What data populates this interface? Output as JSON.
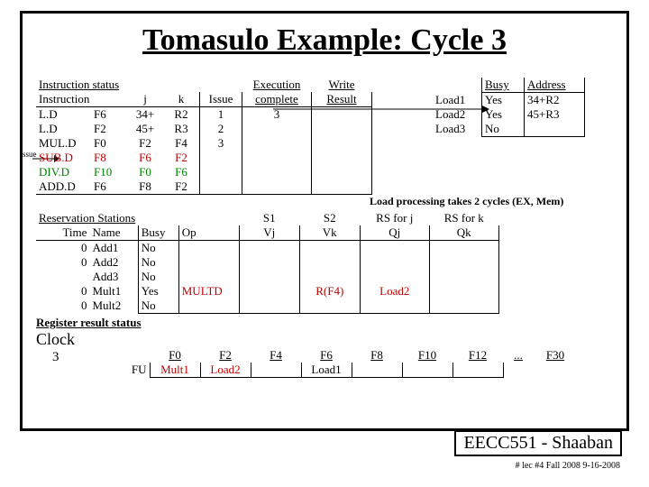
{
  "title": "Tomasulo Example:  Cycle 3",
  "issue_label": "Issue",
  "instruction_status": {
    "heading": "Instruction status",
    "cols": [
      "Instruction",
      "j",
      "k",
      "Issue",
      "Execution complete",
      "Write Result"
    ],
    "rows": [
      {
        "op": "L.D",
        "d": "F6",
        "j": "34+",
        "k": "R2",
        "issue": "1",
        "exec": "3",
        "write": ""
      },
      {
        "op": "L.D",
        "d": "F2",
        "j": "45+",
        "k": "R3",
        "issue": "2",
        "exec": "",
        "write": ""
      },
      {
        "op": "MUL.D",
        "d": "F0",
        "j": "F2",
        "k": "F4",
        "issue": "3",
        "exec": "",
        "write": ""
      },
      {
        "op": "SUB.D",
        "d": "F8",
        "j": "F6",
        "k": "F2",
        "issue": "",
        "exec": "",
        "write": "",
        "color": "red"
      },
      {
        "op": "DIV.D",
        "d": "F10",
        "j": "F0",
        "k": "F6",
        "issue": "",
        "exec": "",
        "write": "",
        "color": "green"
      },
      {
        "op": "ADD.D",
        "d": "F6",
        "j": "F8",
        "k": "F2",
        "issue": "",
        "exec": "",
        "write": ""
      }
    ]
  },
  "load_table": {
    "cols": [
      "",
      "Busy",
      "Address"
    ],
    "rows": [
      {
        "name": "Load1",
        "busy": "Yes",
        "addr": "34+R2"
      },
      {
        "name": "Load2",
        "busy": "Yes",
        "addr": "45+R3"
      },
      {
        "name": "Load3",
        "busy": "No",
        "addr": ""
      }
    ]
  },
  "reservation": {
    "heading": "Reservation Stations",
    "cols": [
      "Time",
      "Name",
      "Busy",
      "Op",
      "S1 Vj",
      "S2 Vk",
      "RS for j Qj",
      "RS for k Qk"
    ],
    "rows": [
      {
        "time": "0",
        "name": "Add1",
        "busy": "No",
        "op": "",
        "vj": "",
        "vk": "",
        "qj": "",
        "qk": ""
      },
      {
        "time": "0",
        "name": "Add2",
        "busy": "No",
        "op": "",
        "vj": "",
        "vk": "",
        "qj": "",
        "qk": ""
      },
      {
        "time": "",
        "name": "Add3",
        "busy": "No",
        "op": "",
        "vj": "",
        "vk": "",
        "qj": "",
        "qk": ""
      },
      {
        "time": "0",
        "name": "Mult1",
        "busy": "Yes",
        "op": "MULTD",
        "vj": "",
        "vk": "R(F4)",
        "qj": "Load2",
        "qk": "",
        "color": "red"
      },
      {
        "time": "0",
        "name": "Mult2",
        "busy": "No",
        "op": "",
        "vj": "",
        "vk": "",
        "qj": "",
        "qk": ""
      }
    ]
  },
  "register_status": {
    "heading": "Register result status",
    "clock_label": "Clock",
    "clock_value": "3",
    "fu_label": "FU",
    "regs": [
      "F0",
      "F2",
      "F4",
      "F6",
      "F8",
      "F10",
      "F12",
      "...",
      "F30"
    ],
    "fu": [
      "Mult1",
      "Load2",
      "",
      "Load1",
      "",
      "",
      "",
      "",
      ""
    ]
  },
  "note": "Load processing takes 2 cycles  (EX, Mem)",
  "footer": {
    "main": "EECC551 - Shaaban",
    "sub": "# lec #4  Fall 2008   9-16-2008"
  }
}
